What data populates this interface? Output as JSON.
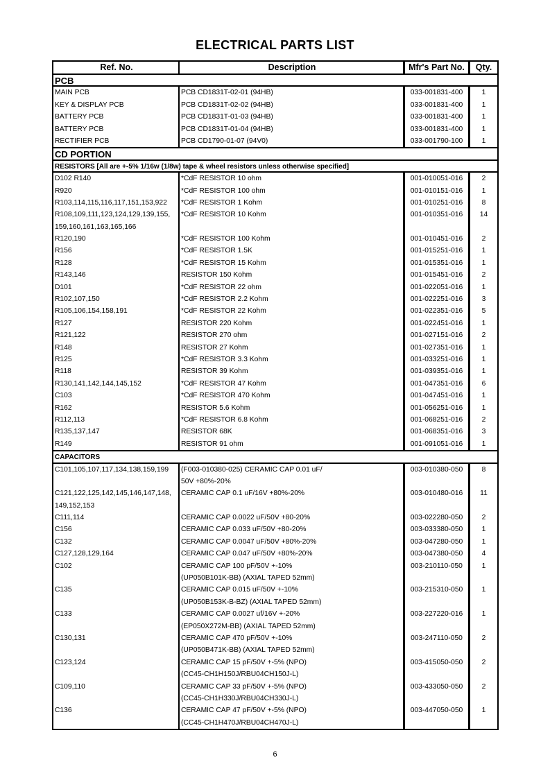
{
  "title": "ELECTRICAL PARTS LIST",
  "headers": {
    "ref": "Ref. No.",
    "desc": "Description",
    "part": "Mfr's Part No.",
    "qty": "Qty."
  },
  "sections": [
    {
      "heading": "PCB",
      "level": "major",
      "items": [
        {
          "ref": [
            "MAIN PCB"
          ],
          "desc": [
            "PCB CD1831T-02-01 (94HB)"
          ],
          "part": "033-001831-400",
          "qty": "1"
        },
        {
          "ref": [
            "KEY & DISPLAY PCB"
          ],
          "desc": [
            "PCB CD1831T-02-02 (94HB)"
          ],
          "part": "033-001831-400",
          "qty": "1"
        },
        {
          "ref": [
            "BATTERY PCB"
          ],
          "desc": [
            "PCB CD1831T-01-03 (94HB)"
          ],
          "part": "033-001831-400",
          "qty": "1"
        },
        {
          "ref": [
            "BATTERY PCB"
          ],
          "desc": [
            "PCB CD1831T-01-04 (94HB)"
          ],
          "part": "033-001831-400",
          "qty": "1"
        },
        {
          "ref": [
            "RECTIFIER PCB"
          ],
          "desc": [
            "PCB CD1790-01-07 (94V0)"
          ],
          "part": "033-001790-100",
          "qty": "1"
        }
      ]
    },
    {
      "heading": "CD PORTION",
      "level": "major",
      "items": []
    },
    {
      "heading": "RESISTORS [All are +-5% 1/16w (1/8w) tape & wheel resistors unless otherwise specified]",
      "level": "minor",
      "items": [
        {
          "ref": [
            "D102 R140"
          ],
          "desc": [
            "*CdF RESISTOR 10 ohm"
          ],
          "part": "001-010051-016",
          "qty": "2"
        },
        {
          "ref": [
            "R920"
          ],
          "desc": [
            "*CdF RESISTOR 100 ohm"
          ],
          "part": "001-010151-016",
          "qty": "1"
        },
        {
          "ref": [
            "R103,114,115,116,117,151,153,922"
          ],
          "desc": [
            "*CdF RESISTOR 1 Kohm"
          ],
          "part": "001-010251-016",
          "qty": "8"
        },
        {
          "ref": [
            "R108,109,111,123,124,129,139,155,",
            "159,160,161,163,165,166"
          ],
          "desc": [
            "*CdF RESISTOR 10 Kohm"
          ],
          "part": "001-010351-016",
          "qty": "14"
        },
        {
          "ref": [
            "R120,190"
          ],
          "desc": [
            "*CdF RESISTOR 100 Kohm"
          ],
          "part": "001-010451-016",
          "qty": "2"
        },
        {
          "ref": [
            "R156"
          ],
          "desc": [
            "*CdF RESISTOR 1.5K"
          ],
          "part": "001-015251-016",
          "qty": "1"
        },
        {
          "ref": [
            "R128"
          ],
          "desc": [
            "*CdF RESISTOR 15 Kohm"
          ],
          "part": "001-015351-016",
          "qty": "1"
        },
        {
          "ref": [
            "R143,146"
          ],
          "desc": [
            "RESISTOR 150 Kohm"
          ],
          "part": "001-015451-016",
          "qty": "2"
        },
        {
          "ref": [
            "D101"
          ],
          "desc": [
            "*CdF RESISTOR 22 ohm"
          ],
          "part": "001-022051-016",
          "qty": "1"
        },
        {
          "ref": [
            "R102,107,150"
          ],
          "desc": [
            "*CdF RESISTOR 2.2 Kohm"
          ],
          "part": "001-022251-016",
          "qty": "3"
        },
        {
          "ref": [
            "R105,106,154,158,191"
          ],
          "desc": [
            "*CdF RESISTOR 22 Kohm"
          ],
          "part": "001-022351-016",
          "qty": "5"
        },
        {
          "ref": [
            "R127"
          ],
          "desc": [
            "RESISTOR 220 Kohm"
          ],
          "part": "001-022451-016",
          "qty": "1"
        },
        {
          "ref": [
            "R121,122"
          ],
          "desc": [
            "RESISTOR 270 ohm"
          ],
          "part": "001-027151-016",
          "qty": "2"
        },
        {
          "ref": [
            "R148"
          ],
          "desc": [
            "RESISTOR 27 Kohm"
          ],
          "part": "001-027351-016",
          "qty": "1"
        },
        {
          "ref": [
            "R125"
          ],
          "desc": [
            "*CdF RESISTOR 3.3 Kohm"
          ],
          "part": "001-033251-016",
          "qty": "1"
        },
        {
          "ref": [
            "R118"
          ],
          "desc": [
            "RESISTOR 39 Kohm"
          ],
          "part": "001-039351-016",
          "qty": "1"
        },
        {
          "ref": [
            "R130,141,142,144,145,152"
          ],
          "desc": [
            "*CdF RESISTOR 47 Kohm"
          ],
          "part": "001-047351-016",
          "qty": "6"
        },
        {
          "ref": [
            "C103"
          ],
          "desc": [
            "*CdF RESISTOR 470 Kohm"
          ],
          "part": "001-047451-016",
          "qty": "1"
        },
        {
          "ref": [
            "R162"
          ],
          "desc": [
            "RESISTOR 5.6 Kohm"
          ],
          "part": "001-056251-016",
          "qty": "1"
        },
        {
          "ref": [
            "R112,113"
          ],
          "desc": [
            "*CdF RESISTOR 6.8 Kohm"
          ],
          "part": "001-068251-016",
          "qty": "2"
        },
        {
          "ref": [
            "R135,137,147"
          ],
          "desc": [
            "RESISTOR 68K"
          ],
          "part": "001-068351-016",
          "qty": "3"
        },
        {
          "ref": [
            "R149"
          ],
          "desc": [
            "RESISTOR 91 ohm"
          ],
          "part": "001-091051-016",
          "qty": "1"
        }
      ]
    },
    {
      "heading": "CAPACITORS",
      "level": "minor",
      "items": [
        {
          "ref": [
            "C101,105,107,117,134,138,159,199"
          ],
          "desc": [
            "(F003-010380-025) CERAMIC CAP 0.01 uF/",
            "50V +80%-20%"
          ],
          "part": "003-010380-050",
          "qty": "8"
        },
        {
          "ref": [
            "C121,122,125,142,145,146,147,148,",
            "149,152,153"
          ],
          "desc": [
            "CERAMIC CAP 0.1 uF/16V +80%-20%"
          ],
          "part": "003-010480-016",
          "qty": "11"
        },
        {
          "ref": [
            "C111,114"
          ],
          "desc": [
            "CERAMIC CAP 0.0022 uF/50V +80-20%"
          ],
          "part": "003-022280-050",
          "qty": "2"
        },
        {
          "ref": [
            "C156"
          ],
          "desc": [
            "CERAMIC CAP 0.033 uF/50V +80-20%"
          ],
          "part": "003-033380-050",
          "qty": "1"
        },
        {
          "ref": [
            "C132"
          ],
          "desc": [
            "CERAMIC CAP 0.0047 uF/50V +80%-20%"
          ],
          "part": "003-047280-050",
          "qty": "1"
        },
        {
          "ref": [
            "C127,128,129,164"
          ],
          "desc": [
            "CERAMIC CAP 0.047 uF/50V +80%-20%"
          ],
          "part": "003-047380-050",
          "qty": "4"
        },
        {
          "ref": [
            "C102"
          ],
          "desc": [
            "CERAMIC CAP 100 pF/50V +-10%",
            "(UP050B101K-BB) (AXIAL TAPED 52mm)"
          ],
          "part": "003-210110-050",
          "qty": "1"
        },
        {
          "ref": [
            "C135"
          ],
          "desc": [
            "CERAMIC CAP 0.015 uF/50V +-10%",
            "(UP050B153K-B-BZ) (AXIAL TAPED 52mm)"
          ],
          "part": "003-215310-050",
          "qty": "1"
        },
        {
          "ref": [
            "C133"
          ],
          "desc": [
            "CERAMIC CAP 0.0027 uf/16V +-20%",
            "(EP050X272M-BB) (AXIAL TAPED 52mm)"
          ],
          "part": "003-227220-016",
          "qty": "1"
        },
        {
          "ref": [
            "C130,131"
          ],
          "desc": [
            "CERAMIC CAP 470 pF/50V +-10%",
            "(UP050B471K-BB) (AXIAL TAPED 52mm)"
          ],
          "part": "003-247110-050",
          "qty": "2"
        },
        {
          "ref": [
            "C123,124"
          ],
          "desc": [
            "CERAMIC CAP 15 pF/50V +-5% (NPO)",
            "(CC45-CH1H150J/RBU04CH150J-L)"
          ],
          "part": "003-415050-050",
          "qty": "2"
        },
        {
          "ref": [
            "C109,110"
          ],
          "desc": [
            "CERAMIC CAP 33 pF/50V +-5% (NPO)",
            "(CC45-CH1H330J/RBU04CH330J-L)"
          ],
          "part": "003-433050-050",
          "qty": "2"
        },
        {
          "ref": [
            "C136"
          ],
          "desc": [
            "CERAMIC CAP 47 pF/50V +-5% (NPO)",
            "(CC45-CH1H470J/RBU04CH470J-L)"
          ],
          "part": "003-447050-050",
          "qty": "1"
        }
      ]
    }
  ],
  "page_number": "6"
}
